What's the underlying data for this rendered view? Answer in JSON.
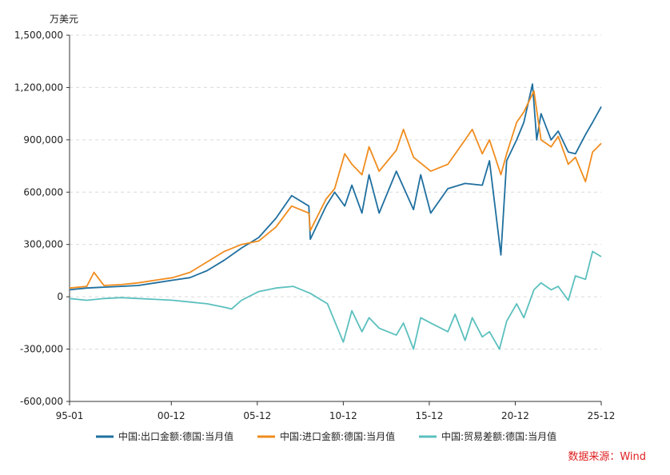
{
  "chart_data": {
    "type": "line",
    "ylabel": "万美元",
    "ylim": [
      -600000,
      1500000
    ],
    "yticks": [
      -600000,
      -300000,
      0,
      300000,
      600000,
      900000,
      1200000,
      1500000
    ],
    "ytick_labels": [
      "-600,000",
      "-300,000",
      "0",
      "300,000",
      "600,000",
      "900,000",
      "1,200,000",
      "1,500,000"
    ],
    "x_range": [
      "1995-01",
      "2025-12"
    ],
    "xticks": [
      "1995-01",
      "2000-12",
      "2005-12",
      "2010-12",
      "2015-12",
      "2020-12",
      "2025-12"
    ],
    "xtick_labels": [
      "95-01",
      "00-12",
      "05-12",
      "10-12",
      "15-12",
      "20-12",
      "25-12"
    ],
    "grid": true,
    "legend_position": "bottom-center",
    "source": "数据来源：Wind",
    "series": [
      {
        "name": "中国:出口金额:德国:当月值",
        "color": "#1f6f9f",
        "x": [
          "1995-01",
          "1996-01",
          "1997-01",
          "1998-01",
          "1999-01",
          "2000-01",
          "2001-01",
          "2002-01",
          "2003-01",
          "2004-01",
          "2005-01",
          "2006-01",
          "2007-01",
          "2007-12",
          "2008-12",
          "2009-01",
          "2009-12",
          "2010-06",
          "2011-01",
          "2011-06",
          "2012-01",
          "2012-06",
          "2013-01",
          "2014-01",
          "2015-01",
          "2015-06",
          "2016-01",
          "2017-01",
          "2018-01",
          "2019-01",
          "2019-06",
          "2020-02",
          "2020-06",
          "2021-01",
          "2021-06",
          "2021-12",
          "2022-03",
          "2022-06",
          "2023-01",
          "2023-06",
          "2024-01",
          "2024-06",
          "2025-01",
          "2025-06",
          "2025-12"
        ],
        "values": [
          40000,
          50000,
          55000,
          60000,
          65000,
          80000,
          95000,
          110000,
          150000,
          210000,
          280000,
          340000,
          450000,
          580000,
          520000,
          330000,
          520000,
          600000,
          520000,
          640000,
          480000,
          700000,
          480000,
          720000,
          500000,
          700000,
          480000,
          620000,
          650000,
          640000,
          780000,
          240000,
          780000,
          900000,
          1000000,
          1220000,
          900000,
          1050000,
          900000,
          950000,
          830000,
          820000,
          930000,
          1000000,
          1090000
        ]
      },
      {
        "name": "中国:进口金额:德国:当月值",
        "color": "#f08c1e",
        "x": [
          "1995-01",
          "1996-01",
          "1996-06",
          "1997-01",
          "1998-01",
          "1999-01",
          "2000-01",
          "2001-01",
          "2002-01",
          "2003-01",
          "2004-01",
          "2005-01",
          "2006-01",
          "2007-01",
          "2007-12",
          "2008-12",
          "2009-01",
          "2009-12",
          "2010-06",
          "2011-01",
          "2011-06",
          "2012-01",
          "2012-06",
          "2013-01",
          "2014-01",
          "2014-06",
          "2015-01",
          "2016-01",
          "2017-01",
          "2018-01",
          "2018-06",
          "2019-01",
          "2019-06",
          "2020-02",
          "2020-06",
          "2021-01",
          "2021-06",
          "2022-01",
          "2022-06",
          "2023-01",
          "2023-06",
          "2024-01",
          "2024-06",
          "2025-01",
          "2025-06",
          "2025-12"
        ],
        "values": [
          50000,
          60000,
          140000,
          65000,
          70000,
          80000,
          95000,
          110000,
          140000,
          200000,
          260000,
          300000,
          320000,
          400000,
          520000,
          480000,
          380000,
          560000,
          620000,
          820000,
          760000,
          700000,
          860000,
          720000,
          840000,
          960000,
          800000,
          720000,
          760000,
          900000,
          960000,
          820000,
          900000,
          700000,
          820000,
          1000000,
          1060000,
          1180000,
          900000,
          860000,
          920000,
          760000,
          800000,
          660000,
          830000,
          880000
        ]
      },
      {
        "name": "中国:贸易差额:德国:当月值",
        "color": "#5bc0be",
        "x": [
          "1995-01",
          "1996-01",
          "1997-01",
          "1998-01",
          "1999-01",
          "2000-01",
          "2001-01",
          "2002-01",
          "2003-01",
          "2004-01",
          "2004-06",
          "2005-01",
          "2006-01",
          "2007-01",
          "2008-01",
          "2009-01",
          "2010-01",
          "2010-12",
          "2011-06",
          "2012-01",
          "2012-06",
          "2013-01",
          "2014-01",
          "2014-06",
          "2015-01",
          "2015-06",
          "2016-01",
          "2017-01",
          "2017-06",
          "2018-01",
          "2018-06",
          "2019-01",
          "2019-06",
          "2020-01",
          "2020-06",
          "2021-01",
          "2021-06",
          "2022-01",
          "2022-06",
          "2023-01",
          "2023-06",
          "2024-01",
          "2024-06",
          "2025-01",
          "2025-06",
          "2025-12"
        ],
        "values": [
          -10000,
          -20000,
          -10000,
          -5000,
          -10000,
          -15000,
          -20000,
          -30000,
          -40000,
          -60000,
          -70000,
          -20000,
          30000,
          50000,
          60000,
          20000,
          -40000,
          -260000,
          -80000,
          -200000,
          -120000,
          -180000,
          -220000,
          -150000,
          -300000,
          -120000,
          -150000,
          -200000,
          -100000,
          -250000,
          -120000,
          -230000,
          -200000,
          -300000,
          -140000,
          -40000,
          -120000,
          40000,
          80000,
          40000,
          60000,
          -20000,
          120000,
          100000,
          260000,
          230000
        ]
      }
    ]
  }
}
